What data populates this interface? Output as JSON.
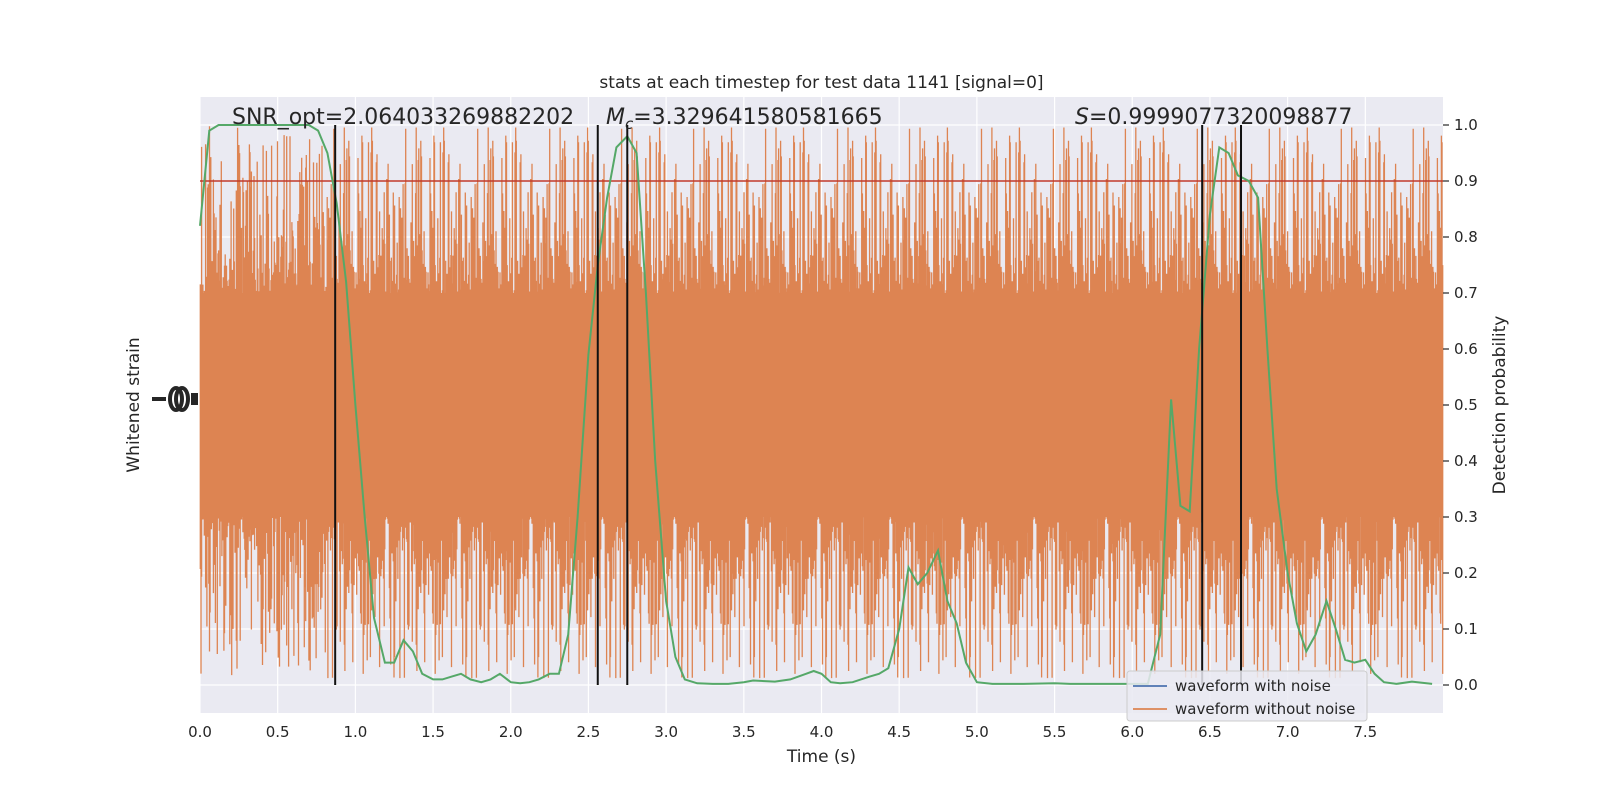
{
  "chart_data": {
    "type": "line",
    "title": "stats at each timestep for test data 1141 [signal=0]",
    "xlabel": "Time (s)",
    "ylabel_left": "Whitened strain",
    "ylabel_right": "Detection probability",
    "xlim": [
      0,
      8
    ],
    "ylim_right": [
      -0.05,
      1.05
    ],
    "x_ticks": [
      "0.0",
      "0.5",
      "1.0",
      "1.5",
      "2.0",
      "2.5",
      "3.0",
      "3.5",
      "4.0",
      "4.5",
      "5.0",
      "5.5",
      "6.0",
      "6.5",
      "7.0",
      "7.5"
    ],
    "y_ticks_right": [
      "0.0",
      "0.1",
      "0.2",
      "0.3",
      "0.4",
      "0.5",
      "0.6",
      "0.7",
      "0.8",
      "0.9",
      "1.0"
    ],
    "grid": true,
    "annotations": {
      "snr_prefix": "SNR_opt=",
      "snr_value": "2.064033269882202",
      "mc_symbol": "M",
      "mc_subscript": "c",
      "mc_value": "=3.329641580581665",
      "s_symbol": "S",
      "s_value": "=0.9999077320098877"
    },
    "threshold": {
      "y": 0.9,
      "color": "#c0392b"
    },
    "vertical_markers": [
      0.87,
      2.56,
      2.75,
      6.45,
      6.7
    ],
    "legend": {
      "placement": "lower-right",
      "entries": [
        {
          "label": "waveform with noise",
          "color": "#4c72b0"
        },
        {
          "label": "waveform without noise",
          "color": "#dd8452"
        }
      ]
    },
    "noise_band": {
      "color": "#dd8452",
      "core_low": 0.3,
      "core_high": 0.7,
      "extreme_low": 0.01,
      "extreme_high": 1.0
    },
    "series": [
      {
        "name": "Detection probability",
        "color": "#55a868",
        "x": [
          0.0,
          0.06,
          0.12,
          0.18,
          0.25,
          0.32,
          0.4,
          0.48,
          0.55,
          0.62,
          0.7,
          0.76,
          0.82,
          0.88,
          0.94,
          1.0,
          1.06,
          1.12,
          1.19,
          1.25,
          1.31,
          1.37,
          1.43,
          1.5,
          1.56,
          1.62,
          1.68,
          1.74,
          1.81,
          1.87,
          1.93,
          2.0,
          2.06,
          2.12,
          2.18,
          2.25,
          2.31,
          2.37,
          2.43,
          2.5,
          2.56,
          2.62,
          2.68,
          2.75,
          2.81,
          2.87,
          2.93,
          3.0,
          3.06,
          3.12,
          3.2,
          3.3,
          3.4,
          3.5,
          3.56,
          3.7,
          3.8,
          3.9,
          3.95,
          4.0,
          4.06,
          4.12,
          4.2,
          4.31,
          4.37,
          4.43,
          4.5,
          4.56,
          4.62,
          4.68,
          4.75,
          4.81,
          4.87,
          4.93,
          5.0,
          5.1,
          5.3,
          5.5,
          5.6,
          5.8,
          6.0,
          6.1,
          6.18,
          6.25,
          6.31,
          6.37,
          6.43,
          6.5,
          6.56,
          6.62,
          6.68,
          6.75,
          6.81,
          6.87,
          6.93,
          7.0,
          7.06,
          7.12,
          7.18,
          7.25,
          7.31,
          7.37,
          7.43,
          7.5,
          7.56,
          7.62,
          7.7,
          7.8,
          7.93
        ],
        "y": [
          0.82,
          0.99,
          1.0,
          1.0,
          1.0,
          1.0,
          1.0,
          1.0,
          1.0,
          1.0,
          1.0,
          0.99,
          0.95,
          0.86,
          0.72,
          0.5,
          0.3,
          0.12,
          0.04,
          0.04,
          0.08,
          0.06,
          0.02,
          0.01,
          0.01,
          0.015,
          0.02,
          0.01,
          0.005,
          0.01,
          0.02,
          0.005,
          0.003,
          0.005,
          0.01,
          0.02,
          0.02,
          0.09,
          0.3,
          0.59,
          0.75,
          0.87,
          0.96,
          0.98,
          0.95,
          0.7,
          0.4,
          0.15,
          0.05,
          0.01,
          0.003,
          0.002,
          0.002,
          0.005,
          0.008,
          0.006,
          0.01,
          0.02,
          0.025,
          0.02,
          0.005,
          0.003,
          0.005,
          0.015,
          0.02,
          0.03,
          0.1,
          0.21,
          0.18,
          0.2,
          0.24,
          0.15,
          0.11,
          0.04,
          0.005,
          0.002,
          0.002,
          0.003,
          0.002,
          0.002,
          0.002,
          0.002,
          0.09,
          0.51,
          0.32,
          0.31,
          0.6,
          0.84,
          0.96,
          0.95,
          0.91,
          0.9,
          0.87,
          0.6,
          0.35,
          0.2,
          0.11,
          0.06,
          0.09,
          0.15,
          0.1,
          0.045,
          0.04,
          0.045,
          0.02,
          0.005,
          0.002,
          0.006,
          0.002
        ]
      }
    ]
  }
}
